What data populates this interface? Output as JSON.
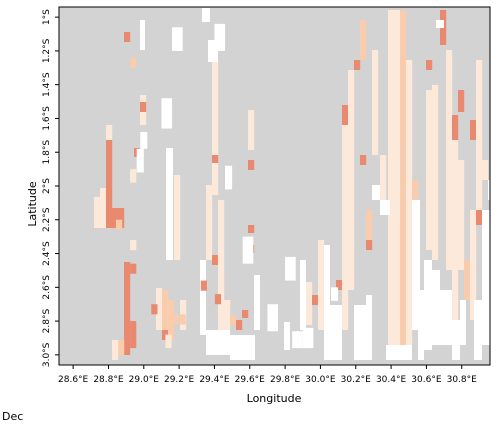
{
  "caption": "Dec",
  "colors": {
    "land": "#d3d3d3",
    "water": "#ffffff",
    "level_1": "#fde9d9",
    "level_2": "#f9ccae",
    "level_3": "#e98a70",
    "frame": "#000000"
  },
  "map": {
    "xlabel": "Longitude",
    "ylabel": "Latitude",
    "lon_range": [
      28.52,
      30.96
    ],
    "lat_range": [
      -3.06,
      -0.94
    ],
    "x_ticks": [
      {
        "value": 28.6,
        "label": "28.6°E"
      },
      {
        "value": 28.8,
        "label": "28.8°E"
      },
      {
        "value": 29.0,
        "label": "29.0°E"
      },
      {
        "value": 29.2,
        "label": "29.2°E"
      },
      {
        "value": 29.4,
        "label": "29.4°E"
      },
      {
        "value": 29.6,
        "label": "29.6°E"
      },
      {
        "value": 29.8,
        "label": "29.8°E"
      },
      {
        "value": 30.0,
        "label": "30.0°E"
      },
      {
        "value": 30.2,
        "label": "30.2°E"
      },
      {
        "value": 30.4,
        "label": "30.4°E"
      },
      {
        "value": 30.6,
        "label": "30.6°E"
      },
      {
        "value": 30.8,
        "label": "30.8°E"
      }
    ],
    "y_ticks": [
      {
        "value": -1.0,
        "label": "1°S"
      },
      {
        "value": -1.2,
        "label": "1.2°S"
      },
      {
        "value": -1.4,
        "label": "1.4°S"
      },
      {
        "value": -1.6,
        "label": "1.6°S"
      },
      {
        "value": -1.8,
        "label": "1.8°S"
      },
      {
        "value": -2.0,
        "label": "2°S"
      },
      {
        "value": -2.2,
        "label": "2.2°S"
      },
      {
        "value": -2.4,
        "label": "2.4°S"
      },
      {
        "value": -2.6,
        "label": "2.6°S"
      },
      {
        "value": -2.8,
        "label": "2.8°S"
      },
      {
        "value": -3.0,
        "label": "3.0°S"
      }
    ],
    "cells": [
      {
        "lon": 28.94,
        "lat_from": -1.98,
        "lat_to": -1.9,
        "level": 1
      },
      {
        "lon": 28.94,
        "lat_from": -2.38,
        "lat_to": -2.32,
        "level": 1
      },
      {
        "lon": 28.94,
        "lat_from": -1.3,
        "lat_to": -1.24,
        "level": 2
      },
      {
        "lon": 28.94,
        "lat_from": -2.52,
        "lat_to": -2.46,
        "level": 3
      },
      {
        "lon": 28.94,
        "lat_from": -2.96,
        "lat_to": -2.8,
        "level": 3
      },
      {
        "lon": 28.86,
        "lat_from": -2.26,
        "lat_to": -2.2,
        "level": 2
      },
      {
        "lon": 29.06,
        "lat_from": -2.76,
        "lat_to": -2.7,
        "level": 3
      },
      {
        "lon": 29.14,
        "lat_from": -2.96,
        "lat_to": -2.88,
        "level": 1
      },
      {
        "lon": 29.18,
        "lat_from": -2.82,
        "lat_to": -2.76,
        "level": 2
      },
      {
        "lon": 29.22,
        "lat_from": -2.82,
        "lat_to": -2.76,
        "level": 2
      },
      {
        "lon": 29.34,
        "lat_from": -2.62,
        "lat_to": -2.56,
        "level": 3
      },
      {
        "lon": 29.42,
        "lat_from": -2.7,
        "lat_to": -2.64,
        "level": 3
      }
    ],
    "water_bodies": [
      {
        "lon_from": 28.96,
        "lon_to": 29.0,
        "lat_from": -1.92,
        "lat_to": -1.78
      },
      {
        "lon_from": 28.98,
        "lon_to": 29.02,
        "lat_from": -1.78,
        "lat_to": -1.68
      },
      {
        "lon_from": 29.1,
        "lon_to": 29.16,
        "lat_from": -1.66,
        "lat_to": -1.48
      },
      {
        "lon_from": 29.16,
        "lon_to": 29.22,
        "lat_from": -1.2,
        "lat_to": -1.06
      },
      {
        "lon_from": 29.4,
        "lon_to": 29.46,
        "lat_from": -1.2,
        "lat_to": -1.04
      },
      {
        "lon_from": 29.46,
        "lon_to": 29.5,
        "lat_from": -2.02,
        "lat_to": -1.88
      },
      {
        "lon_from": 29.56,
        "lon_to": 29.62,
        "lat_from": -2.46,
        "lat_to": -2.3
      },
      {
        "lon_from": 29.7,
        "lon_to": 29.76,
        "lat_from": -2.86,
        "lat_to": -2.7
      },
      {
        "lon_from": 29.8,
        "lon_to": 29.86,
        "lat_from": -2.56,
        "lat_to": -2.42
      },
      {
        "lon_from": 29.84,
        "lon_to": 29.9,
        "lat_from": -2.96,
        "lat_to": -2.86
      },
      {
        "lon_from": 29.9,
        "lon_to": 29.96,
        "lat_from": -2.96,
        "lat_to": -2.84
      },
      {
        "lon_from": 30.06,
        "lon_to": 30.1,
        "lat_from": -2.68,
        "lat_to": -2.6
      }
    ]
  }
}
